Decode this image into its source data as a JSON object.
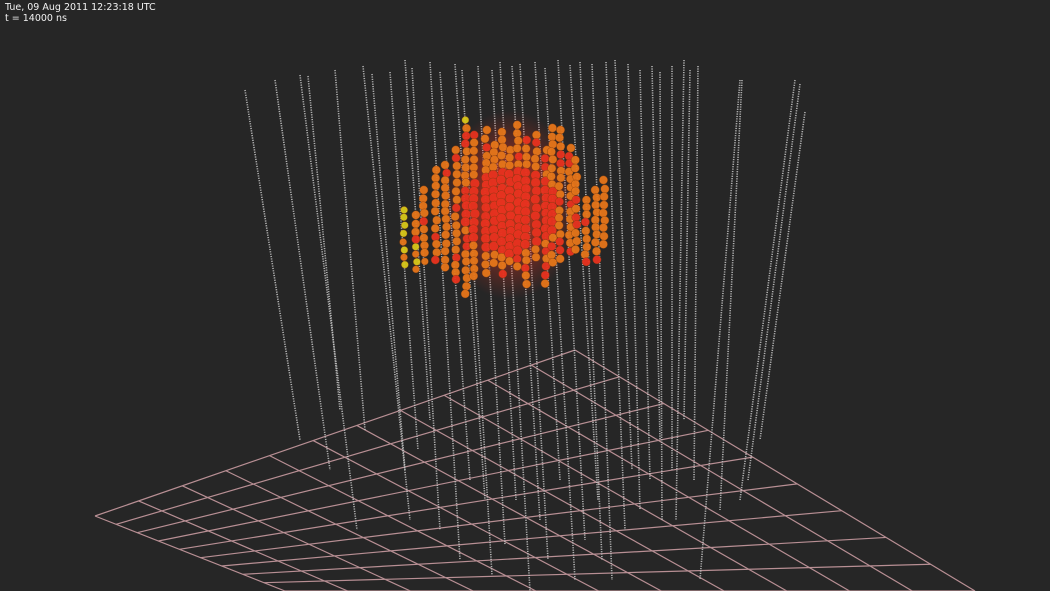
{
  "overlay": {
    "timestamp": "Tue, 09 Aug 2011 12:23:18 UTC",
    "time_readout": "t = 14000 ns"
  },
  "colors": {
    "background": "#262626",
    "strings": "#c9c9c9",
    "grid": "#b88f94",
    "hit_early": "#e8321f",
    "hit_mid": "#e6761a",
    "hit_late": "#d9c81a",
    "hit_latest": "#7dd81c"
  }
}
